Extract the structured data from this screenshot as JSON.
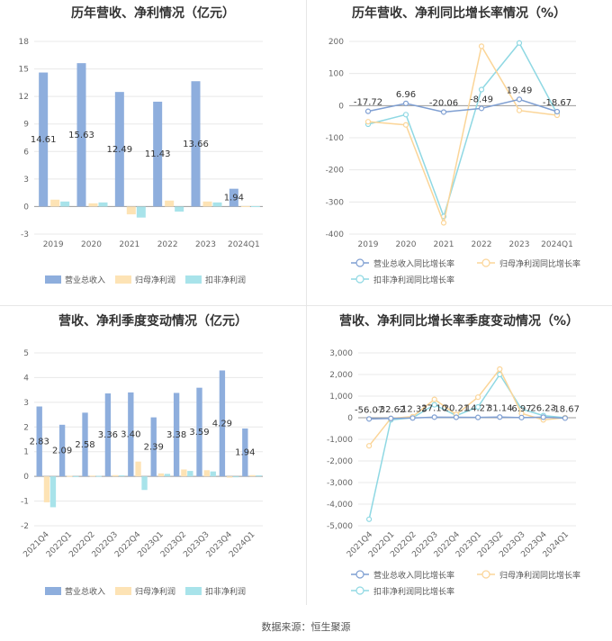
{
  "source_label": "数据来源：恒生聚源",
  "colors": {
    "revenue": "#8eaedd",
    "net_profit": "#fde3b5",
    "deducted_profit": "#a8e3ea",
    "revenue_line": "#7f9fd2",
    "net_profit_line": "#fbd598",
    "deducted_line": "#8fd8e3"
  },
  "chart_data": [
    {
      "type": "bar",
      "title": "历年营收、净利情况（亿元）",
      "categories": [
        "2019",
        "2020",
        "2021",
        "2022",
        "2023",
        "2024Q1"
      ],
      "ylim": [
        -3,
        18
      ],
      "yticks": [
        -3,
        0,
        3,
        6,
        9,
        12,
        15,
        18
      ],
      "series": [
        {
          "name": "营业总收入",
          "values": [
            14.61,
            15.63,
            12.49,
            11.43,
            13.66,
            1.94
          ]
        },
        {
          "name": "归母净利润",
          "values": [
            0.75,
            0.35,
            -0.85,
            0.65,
            0.55,
            0.05
          ]
        },
        {
          "name": "扣非净利润",
          "values": [
            0.55,
            0.45,
            -1.2,
            -0.55,
            0.45,
            0.04
          ]
        }
      ],
      "data_labels": [
        "14.61",
        "15.63",
        "12.49",
        "11.43",
        "13.66",
        "1.94"
      ],
      "legend": "bottom"
    },
    {
      "type": "line",
      "title": "历年营收、净利同比增长率情况（%）",
      "categories": [
        "2019",
        "2020",
        "2021",
        "2022",
        "2023",
        "2024Q1"
      ],
      "ylim": [
        -400,
        200
      ],
      "yticks": [
        -400,
        -300,
        -200,
        -100,
        0,
        100,
        200
      ],
      "series": [
        {
          "name": "营业总收入同比增长率",
          "values": [
            -17.72,
            6.96,
            -20.06,
            -8.49,
            19.49,
            -18.67
          ]
        },
        {
          "name": "归母净利润同比增长率",
          "values": [
            -50,
            -60,
            -365,
            185,
            -15,
            -30
          ]
        },
        {
          "name": "扣非净利润同比增长率",
          "values": [
            -58,
            -28,
            -345,
            50,
            195,
            -25
          ]
        }
      ],
      "data_labels": [
        "-17.72",
        "6.96",
        "-20.06",
        "-8.49",
        "19.49",
        "-18.67"
      ],
      "legend": "bottom"
    },
    {
      "type": "bar",
      "title": "营收、净利季度变动情况（亿元）",
      "categories": [
        "2021Q4",
        "2022Q1",
        "2022Q2",
        "2022Q3",
        "2022Q4",
        "2023Q1",
        "2023Q2",
        "2023Q3",
        "2023Q4",
        "2024Q1"
      ],
      "ylim": [
        -2,
        5
      ],
      "yticks": [
        -2,
        -1,
        0,
        1,
        2,
        3,
        4,
        5
      ],
      "series": [
        {
          "name": "营业总收入",
          "values": [
            2.83,
            2.09,
            2.58,
            3.36,
            3.4,
            2.39,
            3.38,
            3.59,
            4.29,
            1.94
          ]
        },
        {
          "name": "归母净利润",
          "values": [
            -1.05,
            0.02,
            0.03,
            0.05,
            0.6,
            0.12,
            0.28,
            0.25,
            -0.05,
            0.05
          ]
        },
        {
          "name": "扣非净利润",
          "values": [
            -1.25,
            0.01,
            0.02,
            0.04,
            -0.55,
            0.1,
            0.22,
            0.2,
            -0.03,
            0.04
          ]
        }
      ],
      "data_labels": [
        "2.83",
        "2.09",
        "2.58",
        "3.36",
        "3.40",
        "2.39",
        "3.38",
        "3.59",
        "4.29",
        "1.94"
      ],
      "legend": "bottom"
    },
    {
      "type": "line",
      "title": "营收、净利同比增长率季度变动情况（%）",
      "categories": [
        "2021Q4",
        "2022Q1",
        "2022Q2",
        "2022Q3",
        "2022Q4",
        "2023Q1",
        "2023Q2",
        "2023Q3",
        "2023Q4",
        "2024Q1"
      ],
      "ylim": [
        -5000,
        3000
      ],
      "yticks": [
        -5000,
        -4000,
        -3000,
        -2000,
        -1000,
        0,
        1000,
        2000,
        3000
      ],
      "ytick_labels": [
        "-5,000",
        "-4,000",
        "-3,000",
        "-2,000",
        "-1,000",
        "0",
        "1,000",
        "2,000",
        "3,000"
      ],
      "series": [
        {
          "name": "营业总收入同比增长率",
          "values": [
            -56.07,
            -32.62,
            -12.33,
            27.1,
            20.21,
            14.27,
            31.14,
            6.97,
            26.23,
            -18.67
          ]
        },
        {
          "name": "归母净利润同比增长率",
          "values": [
            -1300,
            -30,
            50,
            850,
            150,
            950,
            2250,
            200,
            -100,
            0
          ]
        },
        {
          "name": "扣非净利润同比增长率",
          "values": [
            -4700,
            -100,
            0,
            600,
            100,
            500,
            2000,
            400,
            100,
            0
          ]
        }
      ],
      "data_labels": [
        "-56.07",
        "-32.62",
        "-12.33",
        "27.10",
        "20.21",
        "14.27",
        "31.14",
        "6.97",
        "26.23",
        "-18.67"
      ],
      "legend": "bottom"
    }
  ]
}
